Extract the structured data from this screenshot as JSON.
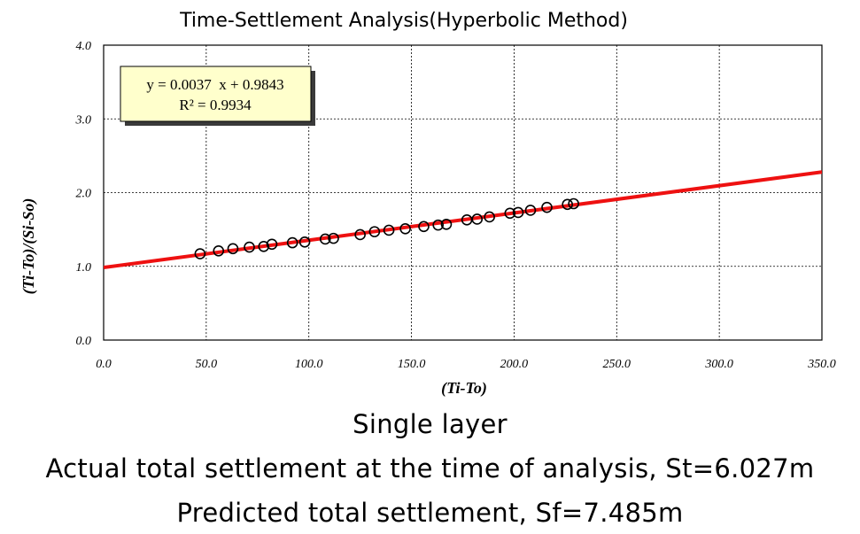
{
  "chart_data": {
    "type": "scatter",
    "title": "Time-Settlement Analysis(Hyperbolic Method)",
    "xlabel": "(Ti-To)",
    "ylabel": "(Ti-To)/(Si-So)",
    "xlim": [
      0,
      350
    ],
    "ylim": [
      0,
      4
    ],
    "x_ticks": [
      "0.0",
      "50.0",
      "100.0",
      "150.0",
      "200.0",
      "250.0",
      "300.0",
      "350.0"
    ],
    "y_ticks": [
      "0.0",
      "1.0",
      "2.0",
      "3.0",
      "4.0"
    ],
    "grid": true,
    "points": [
      {
        "x": 47,
        "y": 1.17
      },
      {
        "x": 56,
        "y": 1.21
      },
      {
        "x": 63,
        "y": 1.24
      },
      {
        "x": 71,
        "y": 1.26
      },
      {
        "x": 78,
        "y": 1.27
      },
      {
        "x": 82,
        "y": 1.3
      },
      {
        "x": 92,
        "y": 1.32
      },
      {
        "x": 98,
        "y": 1.33
      },
      {
        "x": 108,
        "y": 1.37
      },
      {
        "x": 112,
        "y": 1.38
      },
      {
        "x": 125,
        "y": 1.43
      },
      {
        "x": 132,
        "y": 1.47
      },
      {
        "x": 139,
        "y": 1.49
      },
      {
        "x": 147,
        "y": 1.51
      },
      {
        "x": 156,
        "y": 1.54
      },
      {
        "x": 163,
        "y": 1.56
      },
      {
        "x": 167,
        "y": 1.57
      },
      {
        "x": 177,
        "y": 1.63
      },
      {
        "x": 182,
        "y": 1.64
      },
      {
        "x": 188,
        "y": 1.67
      },
      {
        "x": 198,
        "y": 1.72
      },
      {
        "x": 202,
        "y": 1.73
      },
      {
        "x": 208,
        "y": 1.76
      },
      {
        "x": 216,
        "y": 1.8
      },
      {
        "x": 226,
        "y": 1.84
      },
      {
        "x": 229,
        "y": 1.85
      }
    ],
    "trendline": {
      "slope": 0.0037,
      "intercept": 0.9843,
      "color": "#ee1111",
      "equation_text": "y = 0.0037  x + 0.9843",
      "r2_text": "R² = 0.9934"
    },
    "marker_color": "#000000",
    "equation_box_color": "#ffffcc"
  },
  "captions": {
    "line1": "Single layer",
    "line2": "Actual total settlement at the time of analysis, St=6.027m",
    "line3": "Predicted total settlement, Sf=7.485m"
  }
}
